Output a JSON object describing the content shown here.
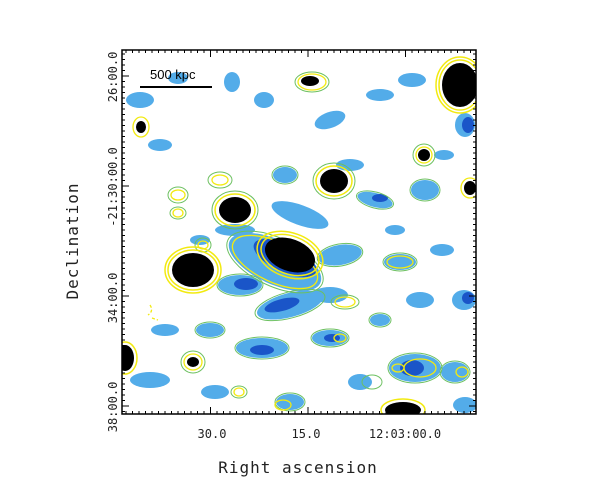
{
  "figure": {
    "xlabel": "Right ascension",
    "ylabel": "Declination",
    "scale_bar_label": "500 kpc",
    "x_ticks": [
      "30.0",
      "15.0",
      "12:03:00.0"
    ],
    "y_ticks": [
      "26:00.0",
      "-21:30:00.0",
      "34:00.0",
      "38:00.0"
    ],
    "colors": {
      "light_blue": "#3ca0e6",
      "dark_blue": "#1450c8",
      "source_core": "#000000",
      "contour": "#f5f014",
      "contour_green": "#7cc84a"
    }
  }
}
